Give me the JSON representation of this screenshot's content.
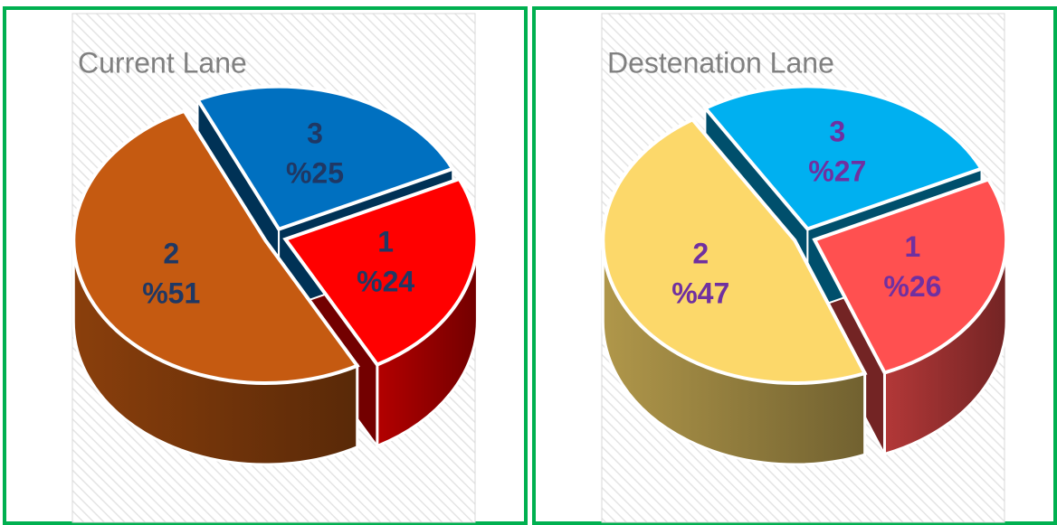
{
  "chart_data": [
    {
      "type": "pie",
      "title": "Current Lane",
      "categories": [
        "1",
        "2",
        "3"
      ],
      "values": [
        24,
        51,
        25
      ],
      "value_labels": [
        "%24",
        "%51",
        "%25"
      ],
      "colors": [
        "#ff0000",
        "#c55a11",
        "#0070c0"
      ],
      "label_color": "#1f3864"
    },
    {
      "type": "pie",
      "title": "Destenation Lane",
      "categories": [
        "1",
        "2",
        "3"
      ],
      "values": [
        26,
        47,
        27
      ],
      "value_labels": [
        "%26",
        "%47",
        "%27"
      ],
      "colors": [
        "#ff5050",
        "#fcd86a",
        "#00b0f0"
      ],
      "label_color": "#7030a0"
    }
  ]
}
